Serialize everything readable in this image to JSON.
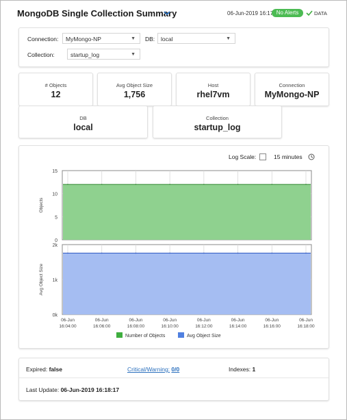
{
  "header": {
    "title": "MongoDB Single Collection Summary",
    "timestamp": "06-Jun-2019 16:17",
    "alerts_badge": "No Alerts",
    "data_label": "DATA"
  },
  "selectors": {
    "connection_label": "Connection:",
    "connection_value": "MyMongo-NP",
    "db_label": "DB:",
    "db_value": "local",
    "collection_label": "Collection:",
    "collection_value": "startup_log"
  },
  "kpis": {
    "objects": {
      "label": "# Objects",
      "value": "12"
    },
    "avg_size": {
      "label": "Avg Object Size",
      "value": "1,756"
    },
    "host": {
      "label": "Host",
      "value": "rhel7vm"
    },
    "connection": {
      "label": "Connection",
      "value": "MyMongo-NP"
    },
    "db": {
      "label": "DB",
      "value": "local"
    },
    "collection": {
      "label": "Collection",
      "value": "startup_log"
    }
  },
  "chart_controls": {
    "log_scale_label": "Log Scale:",
    "log_scale_checked": false,
    "time_range": "15 minutes"
  },
  "chart_data": {
    "type": "area",
    "x": [
      "06-Jun 16:04:00",
      "06-Jun 16:06:00",
      "06-Jun 16:08:00",
      "06-Jun 16:10:00",
      "06-Jun 16:12:00",
      "06-Jun 16:14:00",
      "06-Jun 16:16:00",
      "06-Jun 16:18:00"
    ],
    "xticks": [
      [
        "06-Jun",
        "16:04:00"
      ],
      [
        "06-Jun",
        "16:06:00"
      ],
      [
        "06-Jun",
        "16:08:00"
      ],
      [
        "06-Jun",
        "16:10:00"
      ],
      [
        "06-Jun",
        "16:12:00"
      ],
      [
        "06-Jun",
        "16:14:00"
      ],
      [
        "06-Jun",
        "16:16:00"
      ],
      [
        "06-Jun",
        "16:18:00"
      ]
    ],
    "panels": [
      {
        "ylabel": "Objects",
        "ylim": [
          0,
          15
        ],
        "yticks": [
          "0",
          "5",
          "10",
          "15"
        ],
        "series": [
          {
            "name": "Number of Objects",
            "color": "#8fd18f",
            "line": "#3c8f3c",
            "values": [
              12,
              12,
              12,
              12,
              12,
              12,
              12,
              12
            ]
          }
        ]
      },
      {
        "ylabel": "Avg Object Size",
        "ylim": [
          0,
          2000
        ],
        "yticks": [
          "0k",
          "1k",
          "2k"
        ],
        "series": [
          {
            "name": "Avg Object Size",
            "color": "#a5bdf2",
            "line": "#3a62c8",
            "values": [
              1756,
              1756,
              1756,
              1756,
              1756,
              1756,
              1756,
              1756
            ]
          }
        ]
      }
    ],
    "legend": [
      {
        "label": "Number of Objects",
        "color": "#3fae3f"
      },
      {
        "label": "Avg Object Size",
        "color": "#5080e0"
      }
    ],
    "grid": true,
    "legend_position": "bottom"
  },
  "footer": {
    "expired_label": "Expired:",
    "expired_value": "false",
    "critical_label": "Critical/Warning:",
    "critical_value": "0/0",
    "indexes_label": "Indexes:",
    "indexes_value": "1",
    "last_update_label": "Last Update:",
    "last_update_value": "06-Jun-2019 16:18:17"
  }
}
